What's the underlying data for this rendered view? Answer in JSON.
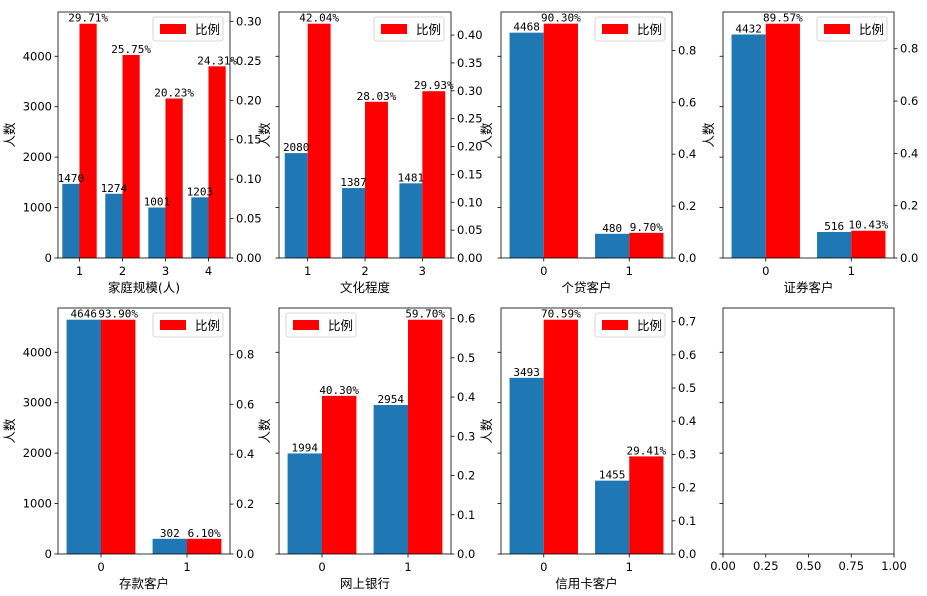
{
  "figure": {
    "background": "#ffffff",
    "count_color": "#1f77b4",
    "ratio_color": "#ff0000"
  },
  "chart_data": [
    {
      "type": "bar",
      "xlabel": "家庭规模(人)",
      "ylabel": "人数",
      "categories": [
        "1",
        "2",
        "3",
        "4"
      ],
      "series": [
        {
          "name": "人数",
          "axis": "left",
          "values": [
            1470,
            1274,
            1001,
            1203
          ],
          "labels": [
            "1470",
            "1274",
            "1001",
            "1203"
          ]
        },
        {
          "name": "比例",
          "axis": "right",
          "values": [
            0.2971,
            0.2575,
            0.2023,
            0.2431
          ],
          "labels": [
            "29.71%",
            "25.75%",
            "20.23%",
            "24.31%"
          ]
        }
      ],
      "left_ylim": [
        0,
        4878
      ],
      "left_ticks": [
        0,
        1000,
        2000,
        3000,
        4000
      ],
      "left_tick_labels": [
        "0",
        "1000",
        "2000",
        "3000",
        "4000"
      ],
      "right_ylim": [
        0,
        0.312
      ],
      "right_ticks": [
        0,
        0.05,
        0.1,
        0.15,
        0.2,
        0.25,
        0.3
      ],
      "right_tick_labels": [
        "0.00",
        "0.05",
        "0.10",
        "0.15",
        "0.20",
        "0.25",
        "0.30"
      ],
      "legend": {
        "label": "比例",
        "position": "upper-right"
      }
    },
    {
      "type": "bar",
      "xlabel": "文化程度",
      "ylabel": "人数",
      "categories": [
        "1",
        "2",
        "3"
      ],
      "series": [
        {
          "name": "人数",
          "axis": "left",
          "values": [
            2080,
            1387,
            1481
          ],
          "labels": [
            "2080",
            "1387",
            "1481"
          ]
        },
        {
          "name": "比例",
          "axis": "right",
          "values": [
            0.4204,
            0.2803,
            0.2993
          ],
          "labels": [
            "42.04%",
            "28.03%",
            "29.93%"
          ]
        }
      ],
      "left_ylim": [
        0,
        4878
      ],
      "left_ticks": [
        0,
        1000,
        2000,
        3000,
        4000
      ],
      "left_tick_labels": [],
      "right_ylim": [
        0,
        0.4414
      ],
      "right_ticks": [
        0,
        0.05,
        0.1,
        0.15,
        0.2,
        0.25,
        0.3,
        0.35,
        0.4
      ],
      "right_tick_labels": [
        "0.00",
        "0.05",
        "0.10",
        "0.15",
        "0.20",
        "0.25",
        "0.30",
        "0.35",
        "0.40"
      ],
      "legend": {
        "label": "比例",
        "position": "upper-right"
      }
    },
    {
      "type": "bar",
      "xlabel": "个贷客户",
      "ylabel": "人数",
      "categories": [
        "0",
        "1"
      ],
      "series": [
        {
          "name": "人数",
          "axis": "left",
          "values": [
            4468,
            480
          ],
          "labels": [
            "4468",
            "480"
          ]
        },
        {
          "name": "比例",
          "axis": "right",
          "values": [
            0.903,
            0.097
          ],
          "labels": [
            "90.30%",
            "9.70%"
          ]
        }
      ],
      "left_ylim": [
        0,
        4878
      ],
      "left_ticks": [
        0,
        1000,
        2000,
        3000,
        4000
      ],
      "left_tick_labels": [],
      "right_ylim": [
        0,
        0.948
      ],
      "right_ticks": [
        0,
        0.2,
        0.4,
        0.6,
        0.8
      ],
      "right_tick_labels": [
        "0.0",
        "0.2",
        "0.4",
        "0.6",
        "0.8"
      ],
      "legend": {
        "label": "比例",
        "position": "upper-right"
      }
    },
    {
      "type": "bar",
      "xlabel": "证券客户",
      "ylabel": "人数",
      "categories": [
        "0",
        "1"
      ],
      "series": [
        {
          "name": "人数",
          "axis": "left",
          "values": [
            4432,
            516
          ],
          "labels": [
            "4432",
            "516"
          ]
        },
        {
          "name": "比例",
          "axis": "right",
          "values": [
            0.8957,
            0.1043
          ],
          "labels": [
            "89.57%",
            "10.43%"
          ]
        }
      ],
      "left_ylim": [
        0,
        4878
      ],
      "left_ticks": [
        0,
        1000,
        2000,
        3000,
        4000
      ],
      "left_tick_labels": [],
      "right_ylim": [
        0,
        0.9405
      ],
      "right_ticks": [
        0,
        0.2,
        0.4,
        0.6,
        0.8
      ],
      "right_tick_labels": [
        "0.0",
        "0.2",
        "0.4",
        "0.6",
        "0.8"
      ],
      "legend": {
        "label": "比例",
        "position": "upper-right"
      }
    },
    {
      "type": "bar",
      "xlabel": "存款客户",
      "ylabel": "人数",
      "categories": [
        "0",
        "1"
      ],
      "series": [
        {
          "name": "人数",
          "axis": "left",
          "values": [
            4646,
            302
          ],
          "labels": [
            "4646",
            "302"
          ]
        },
        {
          "name": "比例",
          "axis": "right",
          "values": [
            0.939,
            0.061
          ],
          "labels": [
            "93.90%",
            "6.10%"
          ]
        }
      ],
      "left_ylim": [
        0,
        4878
      ],
      "left_ticks": [
        0,
        1000,
        2000,
        3000,
        4000
      ],
      "left_tick_labels": [
        "0",
        "1000",
        "2000",
        "3000",
        "4000"
      ],
      "right_ylim": [
        0,
        0.986
      ],
      "right_ticks": [
        0,
        0.2,
        0.4,
        0.6,
        0.8
      ],
      "right_tick_labels": [
        "0.0",
        "0.2",
        "0.4",
        "0.6",
        "0.8"
      ],
      "legend": {
        "label": "比例",
        "position": "upper-right"
      }
    },
    {
      "type": "bar",
      "xlabel": "网上银行",
      "ylabel": "人数",
      "categories": [
        "0",
        "1"
      ],
      "series": [
        {
          "name": "人数",
          "axis": "left",
          "values": [
            1994,
            2954
          ],
          "labels": [
            "1994",
            "2954"
          ]
        },
        {
          "name": "比例",
          "axis": "right",
          "values": [
            0.403,
            0.597
          ],
          "labels": [
            "40.30%",
            "59.70%"
          ]
        }
      ],
      "left_ylim": [
        0,
        4878
      ],
      "left_ticks": [
        0,
        1000,
        2000,
        3000,
        4000
      ],
      "left_tick_labels": [],
      "right_ylim": [
        0,
        0.6269
      ],
      "right_ticks": [
        0,
        0.1,
        0.2,
        0.3,
        0.4,
        0.5,
        0.6
      ],
      "right_tick_labels": [
        "0.0",
        "0.1",
        "0.2",
        "0.3",
        "0.4",
        "0.5",
        "0.6"
      ],
      "legend": {
        "label": "比例",
        "position": "upper-left"
      }
    },
    {
      "type": "bar",
      "xlabel": "信用卡客户",
      "ylabel": "人数",
      "categories": [
        "0",
        "1"
      ],
      "series": [
        {
          "name": "人数",
          "axis": "left",
          "values": [
            3493,
            1455
          ],
          "labels": [
            "3493",
            "1455"
          ]
        },
        {
          "name": "比例",
          "axis": "right",
          "values": [
            0.7059,
            0.2941
          ],
          "labels": [
            "70.59%",
            "29.41%"
          ]
        }
      ],
      "left_ylim": [
        0,
        4878
      ],
      "left_ticks": [
        0,
        1000,
        2000,
        3000,
        4000
      ],
      "left_tick_labels": [],
      "right_ylim": [
        0,
        0.7412
      ],
      "right_ticks": [
        0,
        0.1,
        0.2,
        0.3,
        0.4,
        0.5,
        0.6,
        0.7
      ],
      "right_tick_labels": [
        "0.0",
        "0.1",
        "0.2",
        "0.3",
        "0.4",
        "0.5",
        "0.6",
        "0.7"
      ],
      "legend": {
        "label": "比例",
        "position": "upper-right"
      }
    },
    {
      "type": "empty",
      "xlim": [
        0,
        1
      ],
      "x_ticks": [
        0,
        0.25,
        0.5,
        0.75,
        1.0
      ],
      "x_tick_labels": [
        "0.00",
        "0.25",
        "0.50",
        "0.75",
        "1.00"
      ],
      "left_ylim": [
        0,
        4878
      ],
      "left_ticks": [
        0,
        1000,
        2000,
        3000,
        4000
      ]
    }
  ]
}
